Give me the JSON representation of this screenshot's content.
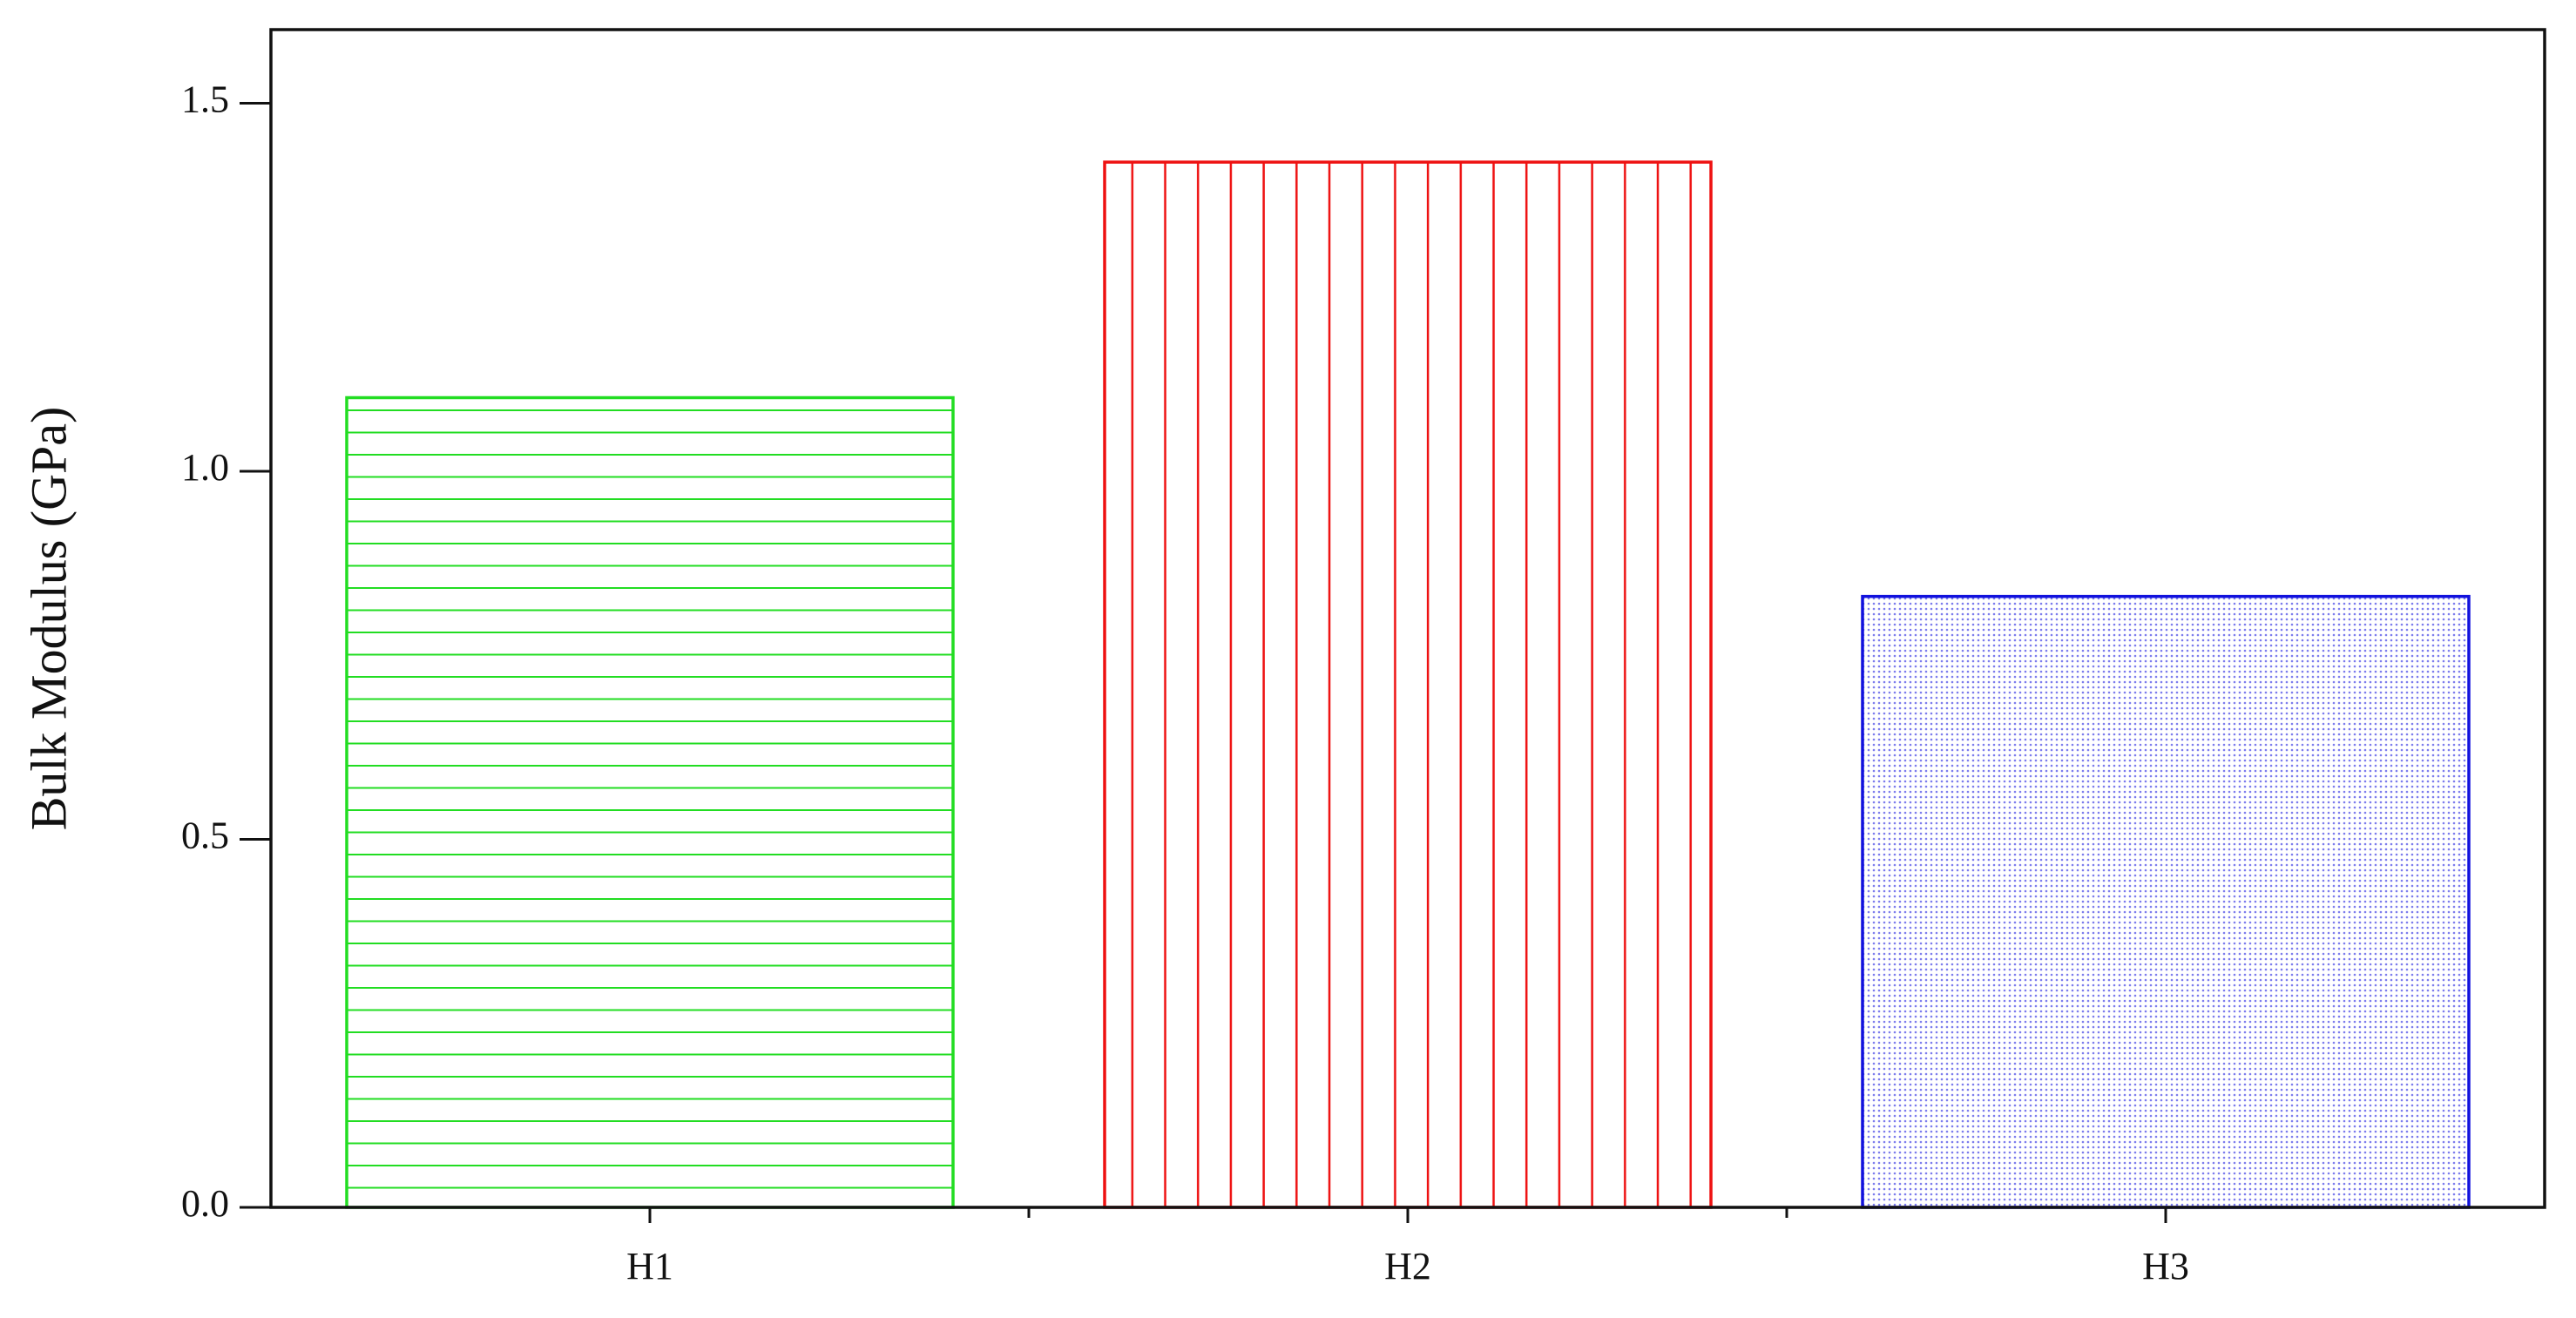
{
  "chart_data": {
    "type": "bar",
    "ylabel": "Bulk Modulus (GPa)",
    "categories": [
      "H1",
      "H2",
      "H3"
    ],
    "values": [
      1.1,
      1.42,
      0.83
    ],
    "colors": [
      "#22dd22",
      "#ee1111",
      "#1111dd"
    ],
    "patterns": [
      "horizontal",
      "vertical",
      "dots"
    ],
    "ylim": [
      0,
      1.6
    ],
    "yticks": [
      {
        "value": 0,
        "label": "0.0"
      },
      {
        "value": 0.5,
        "label": "0.5"
      },
      {
        "value": 1,
        "label": "1.0"
      },
      {
        "value": 1.5,
        "label": "1.5"
      }
    ]
  }
}
